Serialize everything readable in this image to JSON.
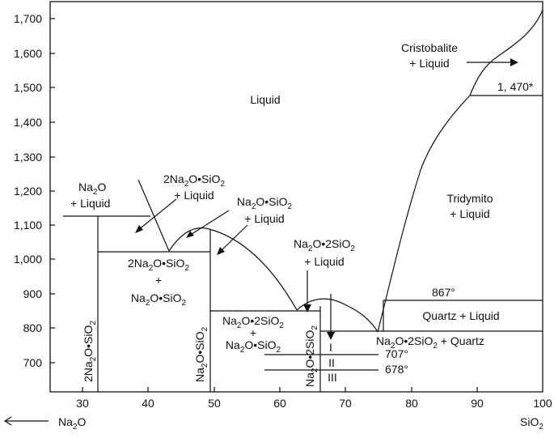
{
  "y_ticks": [
    "1,700",
    "1,600",
    "1,500",
    "1,400",
    "1,300",
    "1,200",
    "1,100",
    "1,000",
    "900",
    "800",
    "700"
  ],
  "x_ticks": [
    "30",
    "40",
    "50",
    "60",
    "70",
    "80",
    "90",
    "100"
  ],
  "axis_left": "Na2O",
  "axis_right": "SiO2",
  "regions": {
    "liquid": "Liquid",
    "cristobalite_1": "Cristobalite",
    "cristobalite_2": "+ Liquid",
    "temp_1470": "1, 470*",
    "tridymite_1": "Tridymito",
    "tridymite_2": "+ Liquid",
    "temp_867": "867°",
    "quartz_liquid": "Quartz + Liquid",
    "na2o_liquid_2": "+ Liquid",
    "a2_liquid": "+ Liquid",
    "b1_liquid": "+ Liquid",
    "c_liquid": "+ Liquid",
    "plus": "+",
    "plus2": "+",
    "quartz_suffix": " + Quartz",
    "roman_1": "I",
    "roman_2": "II",
    "roman_3": "III",
    "temp_707": "707°",
    "temp_678": "678°"
  }
}
